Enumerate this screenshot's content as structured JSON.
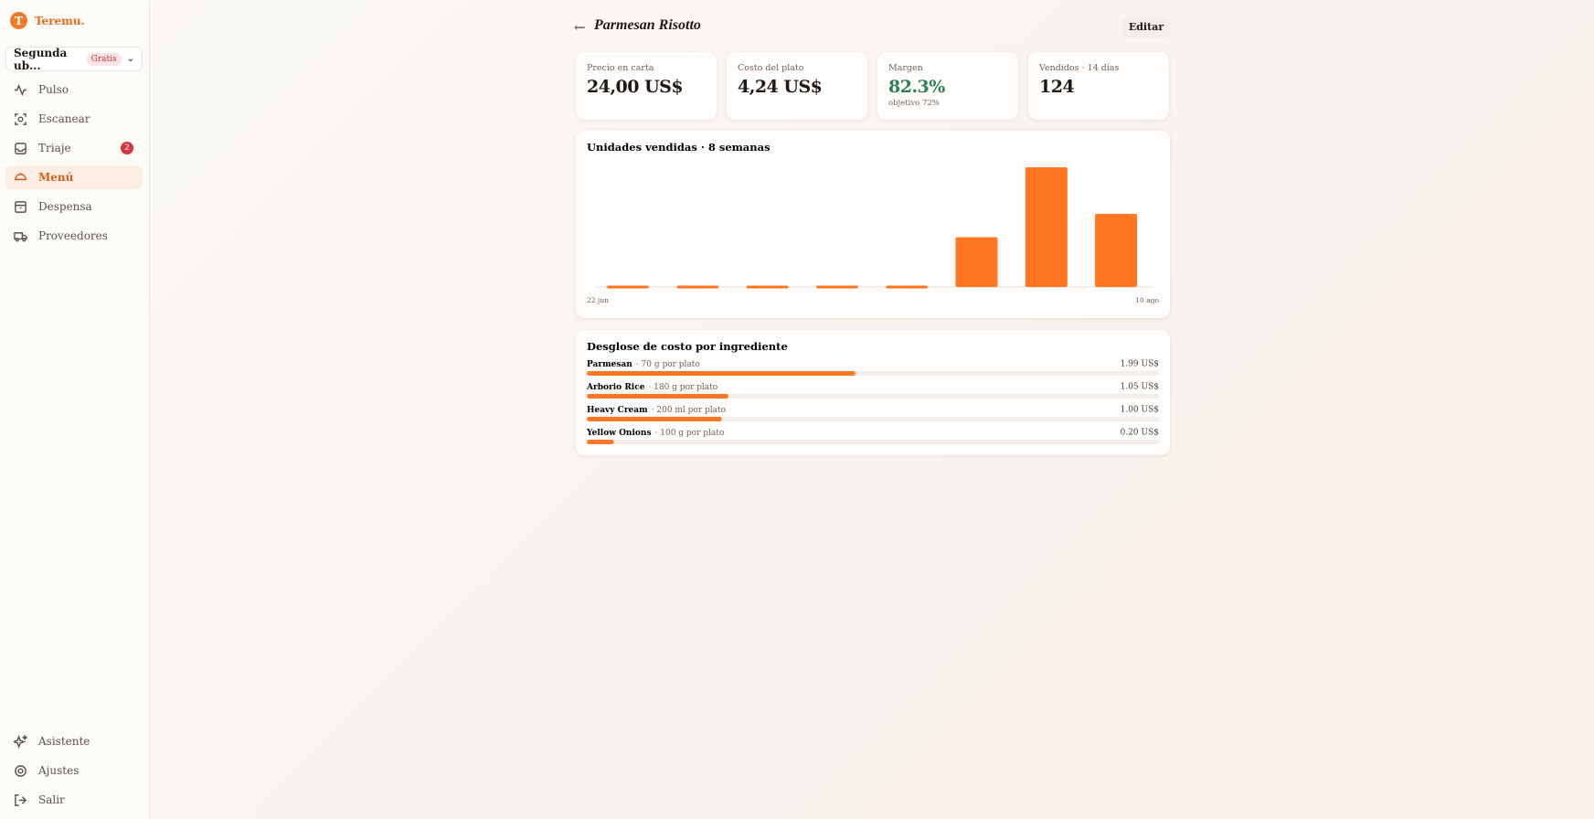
{
  "sidebar": {
    "brand": "Teremu.",
    "location": "Segunda ub...",
    "plan": "Gratis",
    "nav": [
      "Pulso",
      "Escanear",
      "Triaje",
      "Menú",
      "Despensa",
      "Proveedores"
    ],
    "triage_count": 2,
    "footer": [
      "Asistente",
      "Ajustes",
      "Salir"
    ]
  },
  "header": {
    "back": "←",
    "title": "Parmesan Risotto",
    "edit": "Editar"
  },
  "stats": [
    {
      "label": "Precio en carta",
      "value": "24,00 US$"
    },
    {
      "label": "Costo del plato",
      "value": "4,24 US$"
    },
    {
      "label": "Margen",
      "value": "82.3%",
      "note": "objetivo 72%"
    },
    {
      "label": "Vendidos · 14 días",
      "value": 124
    }
  ],
  "chart_data": {
    "type": "bar",
    "title": "Unidades vendidas · 8 semanas",
    "categories": [
      "22 jun",
      null,
      null,
      null,
      null,
      null,
      null,
      "10 ago"
    ],
    "values": [
      0,
      0,
      0,
      0,
      0,
      32,
      77,
      47
    ],
    "color": "#ff7722"
  },
  "ingredients": {
    "title": "Desglose de costo por ingrediente",
    "names": [
      "Parmesan",
      "Arborio Rice",
      "Heavy Cream",
      "Yellow Onions"
    ],
    "details": [
      "· 70 g por plato",
      "· 180 g por plato",
      "· 200 ml por plato",
      "· 100 g por plato"
    ],
    "values": [
      1.99,
      1.05,
      1.0,
      0.2
    ],
    "value_labels": [
      "1.99 US$",
      "1.05 US$",
      "1.00 US$",
      "0.20 US$"
    ],
    "color": "#ff7722"
  }
}
